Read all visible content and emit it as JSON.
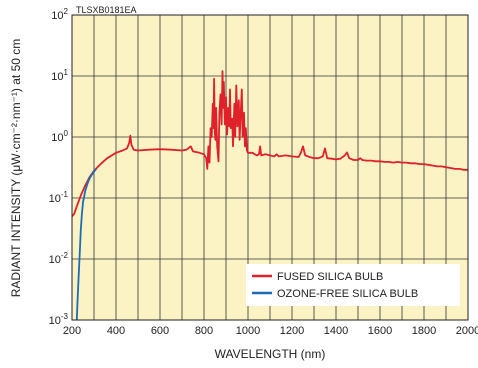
{
  "chart_data": {
    "type": "line",
    "title": "",
    "note": "TLSXB0181EA",
    "xlabel": "WAVELENGTH (nm)",
    "ylabel": "RADIANT INTENSITY (μW·cm⁻²·nm⁻¹) at 50 cm",
    "xlim": [
      200,
      2000
    ],
    "ylim": [
      0.001,
      100
    ],
    "yscale": "log",
    "grid": true,
    "legend_position": "bottom-right",
    "background_color": "#fbf3c4",
    "x_ticks": [
      "200",
      "400",
      "600",
      "800",
      "1000",
      "1200",
      "1400",
      "1600",
      "1800",
      "2000"
    ],
    "x_tick_values": [
      200,
      400,
      600,
      800,
      1000,
      1200,
      1400,
      1600,
      1800,
      2000
    ],
    "y_ticks": [
      {
        "value": 0.001,
        "base": "10",
        "exp": "-3"
      },
      {
        "value": 0.01,
        "base": "10",
        "exp": "-2"
      },
      {
        "value": 0.1,
        "base": "10",
        "exp": "-1"
      },
      {
        "value": 1,
        "base": "10",
        "exp": "0"
      },
      {
        "value": 10,
        "base": "10",
        "exp": "1"
      },
      {
        "value": 100,
        "base": "10",
        "exp": "2"
      }
    ],
    "series": [
      {
        "name": "FUSED SILICA BULB",
        "color": "#e0202a",
        "points": [
          [
            200,
            0.05
          ],
          [
            210,
            0.055
          ],
          [
            220,
            0.07
          ],
          [
            240,
            0.11
          ],
          [
            260,
            0.16
          ],
          [
            280,
            0.22
          ],
          [
            300,
            0.28
          ],
          [
            330,
            0.36
          ],
          [
            360,
            0.45
          ],
          [
            400,
            0.55
          ],
          [
            430,
            0.6
          ],
          [
            450,
            0.65
          ],
          [
            460,
            0.8
          ],
          [
            465,
            1.05
          ],
          [
            470,
            0.75
          ],
          [
            480,
            0.62
          ],
          [
            500,
            0.6
          ],
          [
            550,
            0.62
          ],
          [
            600,
            0.63
          ],
          [
            650,
            0.62
          ],
          [
            700,
            0.6
          ],
          [
            720,
            0.62
          ],
          [
            740,
            0.7
          ],
          [
            750,
            0.58
          ],
          [
            780,
            0.55
          ],
          [
            800,
            0.52
          ],
          [
            810,
            0.45
          ],
          [
            815,
            0.3
          ],
          [
            820,
            0.7
          ],
          [
            825,
            0.38
          ],
          [
            830,
            1.4
          ],
          [
            835,
            1.0
          ],
          [
            840,
            3.5
          ],
          [
            843,
            1.4
          ],
          [
            846,
            9.0
          ],
          [
            849,
            1.2
          ],
          [
            852,
            0.9
          ],
          [
            855,
            3.0
          ],
          [
            860,
            0.7
          ],
          [
            866,
            0.4
          ],
          [
            870,
            2.5
          ],
          [
            875,
            5.0
          ],
          [
            880,
            1.6
          ],
          [
            884,
            12.0
          ],
          [
            887,
            3.0
          ],
          [
            890,
            8.0
          ],
          [
            895,
            1.6
          ],
          [
            900,
            4.5
          ],
          [
            905,
            1.1
          ],
          [
            910,
            3.0
          ],
          [
            915,
            1.5
          ],
          [
            918,
            6.0
          ],
          [
            922,
            1.4
          ],
          [
            928,
            2.0
          ],
          [
            932,
            0.7
          ],
          [
            938,
            3.5
          ],
          [
            942,
            1.0
          ],
          [
            947,
            7.0
          ],
          [
            952,
            1.5
          ],
          [
            958,
            4.0
          ],
          [
            962,
            0.9
          ],
          [
            966,
            2.0
          ],
          [
            972,
            6.0
          ],
          [
            976,
            1.0
          ],
          [
            982,
            2.5
          ],
          [
            986,
            0.7
          ],
          [
            990,
            1.4
          ],
          [
            995,
            0.6
          ],
          [
            1000,
            0.55
          ],
          [
            1020,
            0.55
          ],
          [
            1040,
            0.5
          ],
          [
            1050,
            0.52
          ],
          [
            1055,
            0.7
          ],
          [
            1060,
            0.5
          ],
          [
            1080,
            0.52
          ],
          [
            1100,
            0.5
          ],
          [
            1120,
            0.48
          ],
          [
            1130,
            0.52
          ],
          [
            1140,
            0.48
          ],
          [
            1170,
            0.5
          ],
          [
            1200,
            0.48
          ],
          [
            1230,
            0.47
          ],
          [
            1240,
            0.55
          ],
          [
            1250,
            0.7
          ],
          [
            1260,
            0.5
          ],
          [
            1280,
            0.47
          ],
          [
            1300,
            0.45
          ],
          [
            1320,
            0.45
          ],
          [
            1340,
            0.48
          ],
          [
            1350,
            0.65
          ],
          [
            1360,
            0.45
          ],
          [
            1380,
            0.44
          ],
          [
            1400,
            0.43
          ],
          [
            1420,
            0.44
          ],
          [
            1440,
            0.5
          ],
          [
            1450,
            0.56
          ],
          [
            1460,
            0.45
          ],
          [
            1480,
            0.42
          ],
          [
            1500,
            0.42
          ],
          [
            1510,
            0.45
          ],
          [
            1520,
            0.42
          ],
          [
            1540,
            0.41
          ],
          [
            1560,
            0.41
          ],
          [
            1580,
            0.4
          ],
          [
            1600,
            0.4
          ],
          [
            1620,
            0.39
          ],
          [
            1640,
            0.39
          ],
          [
            1660,
            0.38
          ],
          [
            1680,
            0.39
          ],
          [
            1700,
            0.38
          ],
          [
            1720,
            0.38
          ],
          [
            1740,
            0.37
          ],
          [
            1760,
            0.37
          ],
          [
            1780,
            0.36
          ],
          [
            1800,
            0.36
          ],
          [
            1820,
            0.35
          ],
          [
            1840,
            0.34
          ],
          [
            1860,
            0.33
          ],
          [
            1880,
            0.33
          ],
          [
            1900,
            0.32
          ],
          [
            1920,
            0.31
          ],
          [
            1940,
            0.3
          ],
          [
            1960,
            0.3
          ],
          [
            1980,
            0.29
          ],
          [
            2000,
            0.29
          ]
        ]
      },
      {
        "name": "OZONE-FREE SILICA BULB",
        "color": "#1c6db5",
        "points": [
          [
            222,
            0.001
          ],
          [
            225,
            0.002
          ],
          [
            230,
            0.005
          ],
          [
            235,
            0.012
          ],
          [
            240,
            0.03
          ],
          [
            245,
            0.055
          ],
          [
            250,
            0.085
          ],
          [
            260,
            0.13
          ],
          [
            270,
            0.17
          ],
          [
            280,
            0.21
          ],
          [
            290,
            0.24
          ],
          [
            300,
            0.27
          ],
          [
            310,
            0.3
          ]
        ]
      }
    ]
  }
}
